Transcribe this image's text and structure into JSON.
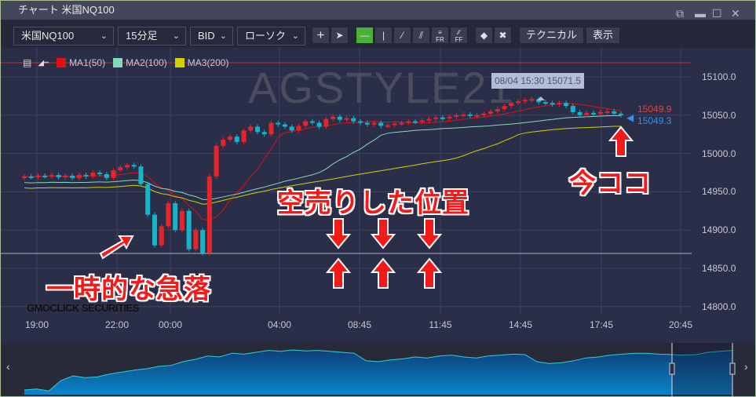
{
  "window": {
    "title": "チャート 米国NQ100",
    "controls": [
      "restore-icon",
      "minimize-icon",
      "maximize-icon",
      "close-icon"
    ]
  },
  "toolbar": {
    "symbol": "米国NQ100",
    "timeframe": "15分足",
    "price_type": "BID",
    "chart_type": "ローソク",
    "tools": [
      "crosshair-icon",
      "pointer-icon",
      "horizontal-line-icon",
      "vertical-line-icon",
      "trend-line-icon",
      "channel-icon",
      "fibonacci-retracement-icon",
      "fibonacci-fan-icon",
      "eraser-icon",
      "erase-all-icon"
    ],
    "tool_labels": {
      "fr": "FR",
      "ff": "FF"
    },
    "technical_label": "テクニカル",
    "display_label": "表示"
  },
  "legend": [
    {
      "label": "MA1(50)",
      "color": "#e01010"
    },
    {
      "label": "MA2(100)",
      "color": "#86d9b9"
    },
    {
      "label": "MA3(200)",
      "color": "#d4d000"
    }
  ],
  "watermark": "AGSTYLE21",
  "logo": "GMOCLICK SECURITIES",
  "tooltip": "08/04 15:30 15071.5",
  "ask_price": "15049.9",
  "bid_price": "15049.3",
  "price_axis": [
    "15100.0",
    "15050.0",
    "15000.0",
    "14950.0",
    "14900.0",
    "14850.0",
    "14800.0"
  ],
  "time_axis": [
    "19:00",
    "22:00",
    "00:00",
    "04:00",
    "08:45",
    "11:45",
    "14:45",
    "17:45",
    "20:45"
  ],
  "colors": {
    "up": "#e8242b",
    "down": "#16b3c9",
    "ask": "#e04545",
    "bid": "#3a8ee6"
  },
  "annotations": {
    "drop": "一時的な急落",
    "short_position": "空売りした位置",
    "now": "今ココ"
  },
  "closes": [
    14970,
    14969,
    14971,
    14970,
    14972,
    14969,
    14971,
    14968,
    14972,
    14970,
    14975,
    14973,
    14968,
    14978,
    14982,
    14985,
    14983,
    14960,
    14920,
    14880,
    14905,
    14935,
    14900,
    14925,
    14875,
    14900,
    14870,
    14970,
    15010,
    15018,
    15022,
    15015,
    15030,
    15035,
    15028,
    15025,
    15040,
    15038,
    15035,
    15030,
    15036,
    15042,
    15040,
    15035,
    15045,
    15048,
    15044,
    15046,
    15042,
    15040,
    15038,
    15040,
    15036,
    15037,
    15039,
    15040,
    15042,
    15041,
    15043,
    15045,
    15047,
    15046,
    15048,
    15050,
    15051,
    15049,
    15050,
    15052,
    15055,
    15058,
    15062,
    15066,
    15068,
    15070,
    15071,
    15067,
    15066,
    15064,
    15066,
    15062,
    15054,
    15050,
    15053,
    15052,
    15054,
    15055,
    15052,
    15050
  ],
  "nav_values": [
    10,
    12,
    8,
    30,
    40,
    36,
    38,
    44,
    48,
    52,
    55,
    60,
    62,
    70,
    75,
    82,
    80,
    88,
    86,
    90,
    94,
    92,
    95,
    93,
    94,
    92,
    90,
    88,
    72,
    70,
    74,
    76,
    80,
    78,
    82,
    84,
    80,
    78,
    82,
    84,
    86,
    85,
    70,
    66,
    68,
    72,
    78,
    80,
    84,
    86,
    88,
    88,
    86,
    85,
    84,
    85,
    90,
    92,
    94
  ]
}
